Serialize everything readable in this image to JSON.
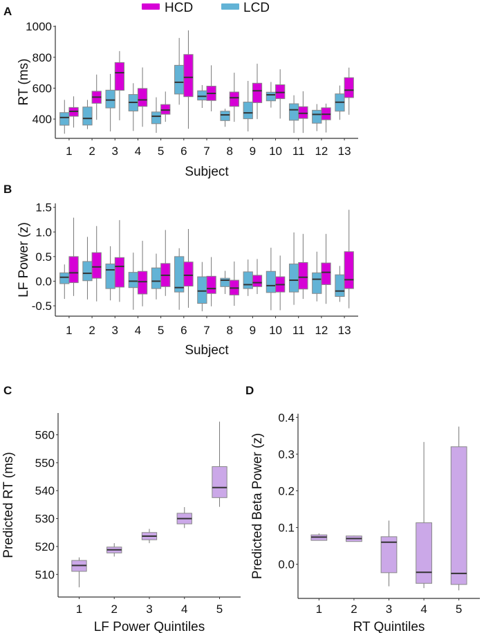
{
  "legend": {
    "items": [
      {
        "label": "HCD",
        "color": "#d600d6"
      },
      {
        "label": "LCD",
        "color": "#62b3d6"
      }
    ]
  },
  "colors": {
    "median": "#333333",
    "whisker": "#777777",
    "quintile_box": "#cba8e8",
    "axis": "#333333"
  },
  "chart_data": [
    {
      "panel": "A",
      "type": "box",
      "title": "",
      "xlabel": "Subject",
      "ylabel": "RT (ms)",
      "ylim": [
        275,
        1005
      ],
      "yticks": [
        400,
        600,
        800,
        1000
      ],
      "categories": [
        "1",
        "2",
        "3",
        "4",
        "5",
        "6",
        "7",
        "8",
        "9",
        "10",
        "11",
        "12",
        "13"
      ],
      "box_order": "low,q1,median,q3,high",
      "series": [
        {
          "name": "LCD",
          "boxes": [
            [
              305,
              360,
              410,
              442,
              524
            ],
            [
              335,
              361,
              404,
              478,
              524
            ],
            [
              320,
              472,
              523,
              587,
              692
            ],
            [
              323,
              452,
              508,
              559,
              632
            ],
            [
              311,
              370,
              418,
              446,
              541
            ],
            [
              493,
              562,
              638,
              748,
              925
            ],
            [
              472,
              523,
              547,
              583,
              620
            ],
            [
              350,
              390,
              427,
              451,
              467
            ],
            [
              320,
              402,
              440,
              510,
              647
            ],
            [
              474,
              518,
              557,
              574,
              640
            ],
            [
              310,
              392,
              460,
              499,
              554
            ],
            [
              322,
              373,
              430,
              457,
              497
            ],
            [
              395,
              451,
              509,
              563,
              617
            ]
          ]
        },
        {
          "name": "HCD",
          "boxes": [
            [
              345,
              418,
              450,
              475,
              547
            ],
            [
              395,
              502,
              542,
              580,
              688
            ],
            [
              392,
              586,
              700,
              766,
              840
            ],
            [
              350,
              482,
              524,
              598,
              734
            ],
            [
              382,
              431,
              458,
              494,
              578
            ],
            [
              337,
              545,
              670,
              818,
              974
            ],
            [
              450,
              520,
              566,
              613,
              748
            ],
            [
              382,
              482,
              538,
              575,
              700
            ],
            [
              400,
              506,
              583,
              632,
              758
            ],
            [
              403,
              532,
              572,
              622,
              722
            ],
            [
              310,
              404,
              437,
              480,
              580
            ],
            [
              313,
              395,
              431,
              473,
              500
            ],
            [
              428,
              539,
              587,
              668,
              733
            ]
          ]
        }
      ]
    },
    {
      "panel": "B",
      "type": "box",
      "title": "",
      "xlabel": "Subject",
      "ylabel": "LF Power (z)",
      "ylim": [
        -0.71,
        1.58
      ],
      "yticks": [
        "-0.5",
        "0.0",
        "0.5",
        "1.0",
        "1.5"
      ],
      "categories": [
        "1",
        "2",
        "3",
        "4",
        "5",
        "6",
        "7",
        "8",
        "9",
        "10",
        "11",
        "12",
        "13"
      ],
      "box_order": "low,q1,median,q3,high",
      "series": [
        {
          "name": "LCD",
          "boxes": [
            [
              -0.36,
              -0.05,
              0.08,
              0.17,
              0.34
            ],
            [
              -0.37,
              0.01,
              0.16,
              0.4,
              0.9
            ],
            [
              -0.39,
              -0.15,
              0.23,
              0.35,
              0.71
            ],
            [
              -0.58,
              -0.13,
              0.0,
              0.18,
              0.58
            ],
            [
              -0.37,
              -0.15,
              0.0,
              0.27,
              0.56
            ],
            [
              -0.58,
              -0.22,
              -0.13,
              0.5,
              0.67
            ],
            [
              -0.61,
              -0.45,
              -0.2,
              0.09,
              0.39
            ],
            [
              -0.26,
              -0.11,
              0.02,
              0.06,
              0.21
            ],
            [
              -0.3,
              -0.15,
              -0.07,
              0.19,
              0.44
            ],
            [
              -0.59,
              -0.23,
              -0.09,
              0.2,
              0.68
            ],
            [
              -0.48,
              -0.22,
              0.02,
              0.35,
              0.99
            ],
            [
              -0.41,
              -0.25,
              0.04,
              0.17,
              0.6
            ],
            [
              -0.42,
              -0.31,
              -0.2,
              0.13,
              0.31
            ]
          ]
        },
        {
          "name": "HCD",
          "boxes": [
            [
              -0.3,
              -0.03,
              0.17,
              0.5,
              1.29
            ],
            [
              -0.41,
              0.06,
              0.29,
              0.58,
              1.12
            ],
            [
              -0.42,
              -0.12,
              0.3,
              0.48,
              1.24
            ],
            [
              -0.51,
              -0.26,
              -0.01,
              0.2,
              0.82
            ],
            [
              -0.3,
              -0.11,
              0.12,
              0.36,
              1.04
            ],
            [
              -0.54,
              -0.1,
              0.12,
              0.39,
              1.06
            ],
            [
              -0.51,
              -0.25,
              -0.15,
              0.1,
              0.49
            ],
            [
              -0.5,
              -0.28,
              -0.14,
              0.02,
              0.4
            ],
            [
              -0.26,
              -0.11,
              -0.03,
              0.12,
              0.45
            ],
            [
              -0.59,
              -0.22,
              -0.07,
              0.09,
              0.52
            ],
            [
              -0.36,
              -0.16,
              0.08,
              0.38,
              0.96
            ],
            [
              -0.46,
              -0.07,
              0.18,
              0.37,
              0.96
            ],
            [
              -0.55,
              -0.15,
              0.03,
              0.6,
              1.45
            ]
          ]
        }
      ]
    },
    {
      "panel": "C",
      "type": "box",
      "title": "",
      "xlabel": "LF Power Quintiles",
      "ylabel": "Predicted RT (ms)",
      "ylim": [
        501.9,
        567.8
      ],
      "yticks": [
        510,
        520,
        530,
        540,
        550,
        560
      ],
      "categories": [
        "1",
        "2",
        "3",
        "4",
        "5"
      ],
      "box_order": "low,q1,median,q3,high",
      "series": [
        {
          "name": "Predicted RT",
          "boxes": [
            [
              505.4,
              511.1,
              513.2,
              515.0,
              516.1
            ],
            [
              516.4,
              517.7,
              518.8,
              519.8,
              521.2
            ],
            [
              521.2,
              522.4,
              523.7,
              525.0,
              526.3
            ],
            [
              526.6,
              528.1,
              530.0,
              531.9,
              534.1
            ],
            [
              534.2,
              537.5,
              541.1,
              548.6,
              564.7
            ]
          ]
        }
      ]
    },
    {
      "panel": "D",
      "type": "box",
      "title": "",
      "xlabel": "RT Quintiles",
      "ylabel": "Predicted Beta Power (z)",
      "ylim": [
        -0.093,
        0.41
      ],
      "yticks": [
        "0.0",
        "0.1",
        "0.2",
        "0.3",
        "0.4"
      ],
      "categories": [
        "1",
        "2",
        "3",
        "4",
        "5"
      ],
      "box_order": "low,q1,median,q3,high",
      "series": [
        {
          "name": "Predicted Beta Power",
          "boxes": [
            [
              0.065,
              0.065,
              0.074,
              0.08,
              0.084
            ],
            [
              0.062,
              0.062,
              0.07,
              0.077,
              0.078
            ],
            [
              -0.06,
              -0.023,
              0.06,
              0.075,
              0.119
            ],
            [
              -0.065,
              -0.052,
              -0.022,
              0.113,
              0.333
            ],
            [
              -0.071,
              -0.055,
              -0.025,
              0.32,
              0.375
            ]
          ]
        }
      ]
    }
  ]
}
